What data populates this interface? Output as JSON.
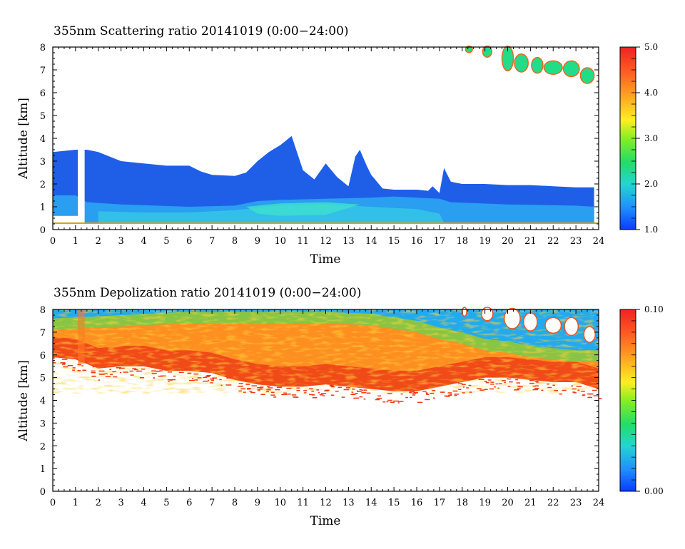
{
  "chart_data": [
    {
      "type": "heatmap",
      "title": "355nm Scattering ratio  20141019 (0:00−24:00)",
      "xlabel": "Time",
      "ylabel": "Altitude [km]",
      "xlim": [
        0,
        24
      ],
      "ylim": [
        0,
        8
      ],
      "xticks": [
        0,
        1,
        2,
        3,
        4,
        5,
        6,
        7,
        8,
        9,
        10,
        11,
        12,
        13,
        14,
        15,
        16,
        17,
        18,
        19,
        20,
        21,
        22,
        23,
        24
      ],
      "yticks": [
        0,
        1,
        2,
        3,
        4,
        5,
        6,
        7,
        8
      ],
      "colorbar": {
        "min": 1.0,
        "max": 5.0,
        "tick_labels": [
          "1.0",
          "2.0",
          "3.0",
          "4.0",
          "5.0"
        ],
        "tick_values": [
          1.0,
          2.0,
          3.0,
          4.0,
          5.0
        ]
      },
      "aerosol_layer_top_km": [
        [
          0.0,
          3.4
        ],
        [
          0.5,
          3.45
        ],
        [
          1.0,
          3.5
        ],
        [
          1.5,
          3.5
        ],
        [
          2.0,
          3.4
        ],
        [
          2.5,
          3.2
        ],
        [
          3.0,
          3.0
        ],
        [
          4.0,
          2.9
        ],
        [
          5.0,
          2.8
        ],
        [
          6.0,
          2.8
        ],
        [
          6.5,
          2.55
        ],
        [
          7.0,
          2.4
        ],
        [
          8.0,
          2.35
        ],
        [
          8.5,
          2.5
        ],
        [
          9.0,
          3.0
        ],
        [
          9.5,
          3.4
        ],
        [
          10.0,
          3.7
        ],
        [
          10.5,
          4.1
        ],
        [
          11.0,
          2.6
        ],
        [
          11.5,
          2.2
        ],
        [
          12.0,
          2.9
        ],
        [
          12.5,
          2.3
        ],
        [
          13.0,
          1.9
        ],
        [
          13.3,
          3.2
        ],
        [
          13.5,
          3.5
        ],
        [
          13.8,
          2.8
        ],
        [
          14.0,
          2.4
        ],
        [
          14.5,
          1.8
        ],
        [
          15.0,
          1.75
        ],
        [
          16.0,
          1.75
        ],
        [
          16.5,
          1.7
        ],
        [
          16.7,
          1.9
        ],
        [
          17.0,
          1.6
        ],
        [
          17.2,
          2.7
        ],
        [
          17.5,
          2.1
        ],
        [
          18.0,
          2.0
        ],
        [
          19.0,
          2.0
        ],
        [
          20.0,
          1.95
        ],
        [
          21.0,
          1.95
        ],
        [
          22.0,
          1.9
        ],
        [
          23.0,
          1.85
        ],
        [
          23.8,
          1.85
        ]
      ],
      "missing_data_interval_h": [
        1.1,
        1.4
      ],
      "cirrus_clouds_km": {
        "time_range_h": [
          17.8,
          24
        ],
        "altitude_range_km": [
          6.5,
          8.0
        ]
      }
    },
    {
      "type": "heatmap",
      "title": "355nm Depolization ratio  20141019 (0:00−24:00)",
      "xlabel": "Time",
      "ylabel": "Altitude [km]",
      "xlim": [
        0,
        24
      ],
      "ylim": [
        0,
        8
      ],
      "xticks": [
        0,
        1,
        2,
        3,
        4,
        5,
        6,
        7,
        8,
        9,
        10,
        11,
        12,
        13,
        14,
        15,
        16,
        17,
        18,
        19,
        20,
        21,
        22,
        23,
        24
      ],
      "yticks": [
        0,
        1,
        2,
        3,
        4,
        5,
        6,
        7,
        8
      ],
      "colorbar": {
        "min": 0.0,
        "max": 0.1,
        "tick_labels": [
          "0.00",
          "0.10"
        ],
        "tick_values": [
          0.0,
          0.1
        ]
      },
      "high_depol_layer_bottom_km": [
        [
          0.0,
          5.9
        ],
        [
          1.0,
          5.8
        ],
        [
          1.5,
          5.6
        ],
        [
          2.0,
          5.4
        ],
        [
          3.0,
          5.5
        ],
        [
          4.0,
          5.5
        ],
        [
          5.0,
          5.3
        ],
        [
          6.0,
          5.3
        ],
        [
          7.0,
          5.2
        ],
        [
          8.0,
          4.9
        ],
        [
          9.0,
          4.7
        ],
        [
          10.0,
          4.6
        ],
        [
          11.0,
          4.6
        ],
        [
          12.0,
          4.7
        ],
        [
          13.0,
          4.6
        ],
        [
          14.0,
          4.5
        ],
        [
          15.0,
          4.4
        ],
        [
          16.0,
          4.4
        ],
        [
          17.0,
          4.6
        ],
        [
          18.0,
          4.8
        ],
        [
          19.0,
          5.0
        ],
        [
          20.0,
          5.0
        ],
        [
          21.0,
          4.9
        ],
        [
          22.0,
          4.8
        ],
        [
          23.0,
          4.8
        ],
        [
          24.0,
          4.5
        ]
      ],
      "low_depol_layer_bottom_km": [
        [
          0.0,
          7.6
        ],
        [
          2.0,
          7.7
        ],
        [
          4.0,
          7.8
        ],
        [
          6.0,
          7.9
        ],
        [
          8.0,
          7.9
        ],
        [
          10.0,
          7.9
        ],
        [
          12.0,
          7.9
        ],
        [
          14.0,
          7.8
        ],
        [
          16.0,
          7.5
        ],
        [
          17.0,
          7.2
        ],
        [
          18.0,
          7.0
        ],
        [
          19.0,
          6.7
        ],
        [
          20.0,
          6.6
        ],
        [
          21.0,
          6.4
        ],
        [
          22.0,
          6.3
        ],
        [
          23.0,
          6.2
        ],
        [
          24.0,
          6.2
        ]
      ],
      "cloud_gaps_km": {
        "time_range_h": [
          18.0,
          24
        ],
        "altitude_range_km": [
          6.5,
          8.0
        ]
      }
    }
  ]
}
